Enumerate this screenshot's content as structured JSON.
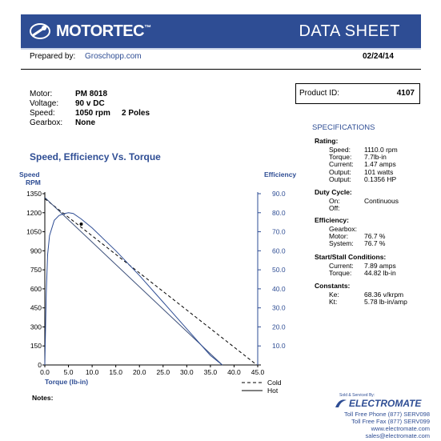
{
  "header": {
    "brand": "MOTORTEC",
    "trademark": "™",
    "doc_type": "DATA SHEET",
    "colors": {
      "header_bg": "#2e4d94",
      "accent_blue": "#2e4d94"
    }
  },
  "prepared": {
    "label": "Prepared by:",
    "value": "Groschopp.com",
    "date": "02/24/14"
  },
  "motor_info": [
    {
      "label": "Motor:",
      "value": "PM  8018",
      "extra": ""
    },
    {
      "label": "Voltage:",
      "value": "90 v DC",
      "extra": ""
    },
    {
      "label": "Speed:",
      "value": "1050 rpm",
      "extra": "2 Poles"
    },
    {
      "label": "Gearbox:",
      "value": "None",
      "extra": ""
    }
  ],
  "product_id": {
    "label": "Product ID:",
    "value": "4107"
  },
  "specifications": {
    "title": "SPECIFICATIONS",
    "rating": {
      "title": "Rating:",
      "rows": [
        {
          "label": "Speed:",
          "value": "1110.0 rpm"
        },
        {
          "label": "Torque:",
          "value": "7.7lb-in"
        },
        {
          "label": "Current:",
          "value": "1.47 amps"
        },
        {
          "label": "Output:",
          "value": "101 watts"
        },
        {
          "label": "Output:",
          "value": "0.1356 HP"
        }
      ]
    },
    "duty_cycle": {
      "title": "Duty Cycle:",
      "rows": [
        {
          "label": "On:",
          "value": "Continuous"
        },
        {
          "label": "Off:",
          "value": ""
        }
      ]
    },
    "efficiency": {
      "title": "Efficiency:",
      "rows": [
        {
          "label": "Gearbox:",
          "value": ""
        },
        {
          "label": "Motor:",
          "value": "76.7 %"
        },
        {
          "label": "System:",
          "value": "76.7 %"
        }
      ]
    },
    "start_stall": {
      "title": "Start/Stall Conditions:",
      "rows": [
        {
          "label": "Current:",
          "value": "7.89 amps"
        },
        {
          "label": "Torque:",
          "value": "44.82 lb-in"
        }
      ]
    },
    "constants": {
      "title": "Constants:",
      "rows": [
        {
          "label": "Ke:",
          "value": "68.36 v/krpm"
        },
        {
          "label": "Kt:",
          "value": "5.78 lb-in/amp"
        }
      ]
    }
  },
  "chart_data": {
    "type": "line",
    "title": "Speed, Efficiency Vs. Torque",
    "ylabel_left_line1": "Speed",
    "ylabel_left_line2": "RPM",
    "ylabel_right": "Efficiency",
    "xlabel": "Torque  (lb-in)",
    "xlim": [
      0,
      45
    ],
    "ylim_left": [
      0,
      1350
    ],
    "ylim_right": [
      0,
      90
    ],
    "x_ticks": [
      "0.0",
      "5.0",
      "10.0",
      "15.0",
      "20.0",
      "25.0",
      "30.0",
      "35.0",
      "40.0",
      "45.0"
    ],
    "y_ticks_left": [
      "0",
      "150",
      "300",
      "450",
      "600",
      "750",
      "900",
      "1050",
      "1200",
      "1350"
    ],
    "y_ticks_right": [
      "10.0",
      "20.0",
      "30.0",
      "40.0",
      "50.0",
      "60.0",
      "70.0",
      "80.0",
      "90.0"
    ],
    "grid": false,
    "legend_position": "bottom-right",
    "series": [
      {
        "name": "Cold",
        "style": "dashed",
        "axis": "left",
        "x": [
          0,
          44.82
        ],
        "y": [
          1310,
          0
        ]
      },
      {
        "name": "Hot",
        "style": "solid",
        "axis": "left",
        "x": [
          0,
          37.5
        ],
        "y": [
          1320,
          0
        ]
      },
      {
        "name": "",
        "style": "solid",
        "axis": "right",
        "x": [
          0,
          0.3,
          0.6,
          1.0,
          2.0,
          3.0,
          4.0,
          5.0,
          6.0,
          7.7,
          10,
          15,
          20,
          25,
          30,
          35,
          37.5
        ],
        "y": [
          0,
          38,
          58,
          68,
          76,
          78.5,
          79.5,
          80,
          79.6,
          76.7,
          72,
          60,
          47,
          33,
          19,
          5,
          0
        ]
      }
    ],
    "marker": {
      "x": 7.7,
      "y": 1110
    }
  },
  "notes": {
    "label": "Notes:"
  },
  "footer": {
    "sold_by": "Sold & Serviced By:",
    "company": "ELECTROMATE",
    "phone": "Toll Free Phone  (877) SERV098",
    "fax": "Toll Free Fax  (877) SERV099",
    "web": "www.electromate.com",
    "email": "sales@electromate.com"
  }
}
